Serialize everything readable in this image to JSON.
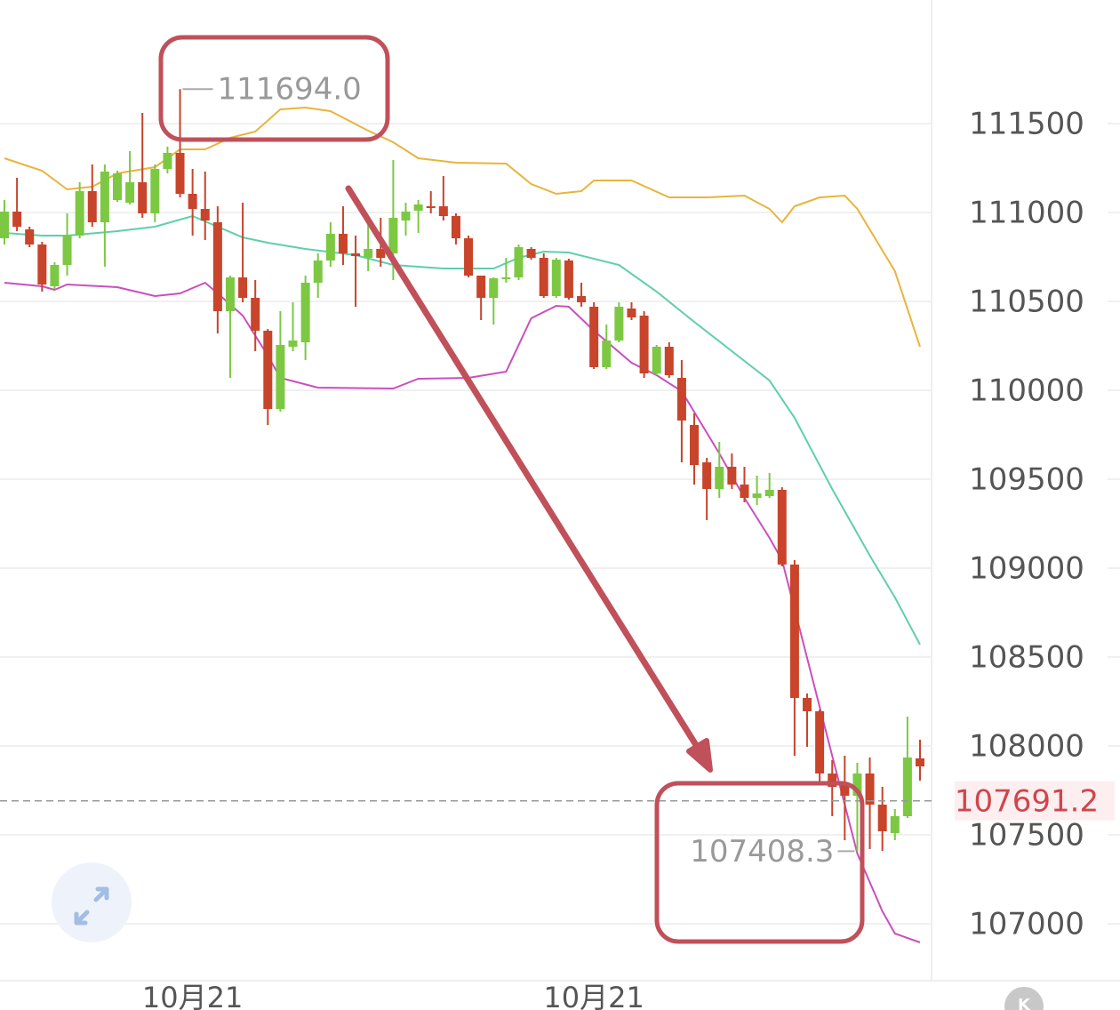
{
  "chart_data": {
    "type": "candlestick",
    "categories": [
      null,
      null,
      null,
      null,
      null,
      null,
      null,
      null,
      null,
      null,
      null,
      null,
      null,
      null,
      null,
      "10月21",
      null,
      null,
      null,
      null,
      null,
      null,
      null,
      null,
      null,
      null,
      null,
      null,
      null,
      null,
      null,
      null,
      null,
      null,
      null,
      null,
      null,
      null,
      null,
      null,
      null,
      null,
      null,
      null,
      null,
      null,
      null,
      "10月21",
      null,
      null,
      null,
      null,
      null,
      null,
      null,
      null,
      null,
      null,
      null,
      null,
      null,
      null,
      null,
      null,
      null,
      null,
      null,
      null,
      null,
      null,
      null,
      null,
      null,
      null
    ],
    "open": [
      110855,
      111005,
      110905,
      110820,
      110585,
      110705,
      110870,
      111120,
      110945,
      111070,
      111055,
      111170,
      110995,
      111245,
      111335,
      111105,
      111020,
      110945,
      110445,
      110635,
      110520,
      110335,
      109895,
      110245,
      110270,
      110605,
      110730,
      110880,
      110770,
      110745,
      110795,
      110770,
      110955,
      111010,
      111035,
      111035,
      110980,
      110855,
      110645,
      110520,
      110625,
      110635,
      110795,
      110745,
      110530,
      110730,
      110530,
      110470,
      110130,
      110280,
      110460,
      110420,
      110095,
      110245,
      110070,
      109805,
      109595,
      109445,
      109570,
      109470,
      109395,
      109405,
      109440,
      109020,
      108270,
      108195,
      107845,
      107785,
      107720,
      107845,
      107670,
      107510,
      107605,
      107930
    ],
    "high": [
      111070,
      111195,
      110920,
      110835,
      110720,
      110995,
      111170,
      111270,
      111270,
      111235,
      111345,
      111560,
      111270,
      111370,
      111694,
      111245,
      111230,
      111035,
      110645,
      111055,
      110620,
      110345,
      110445,
      110495,
      110645,
      110770,
      110945,
      111035,
      110870,
      110945,
      110970,
      111295,
      111055,
      111070,
      111120,
      111205,
      110995,
      110870,
      110645,
      110635,
      110745,
      110820,
      110805,
      110770,
      110745,
      110740,
      110605,
      110495,
      110370,
      110495,
      110495,
      110445,
      110255,
      110270,
      110170,
      109870,
      109620,
      109710,
      109645,
      109570,
      109520,
      109535,
      109455,
      109045,
      108295,
      108205,
      107920,
      107945,
      107905,
      107935,
      107770,
      107645,
      108165,
      108035
    ],
    "low": [
      110820,
      110895,
      110805,
      110555,
      110570,
      110645,
      110855,
      110920,
      110695,
      111060,
      111045,
      110970,
      110945,
      111220,
      111085,
      110870,
      110845,
      110320,
      110070,
      110495,
      110220,
      109805,
      109880,
      110220,
      110170,
      110520,
      110695,
      110705,
      110470,
      110670,
      110695,
      110620,
      110870,
      110885,
      110995,
      110955,
      110820,
      110635,
      110395,
      110370,
      110605,
      110620,
      110735,
      110520,
      110520,
      110510,
      110470,
      110120,
      110120,
      110270,
      110395,
      110070,
      110085,
      110070,
      109595,
      109470,
      109270,
      109395,
      109445,
      109370,
      109355,
      109395,
      109010,
      107945,
      107995,
      107795,
      107605,
      107470,
      107408.3,
      107420,
      107410,
      107470,
      107595,
      107805
    ],
    "close": [
      111005,
      110920,
      110820,
      110595,
      110705,
      110870,
      111120,
      110945,
      111230,
      111220,
      111170,
      110995,
      111245,
      111335,
      111105,
      111020,
      110955,
      110445,
      110635,
      110520,
      110335,
      109895,
      110255,
      110280,
      110605,
      110730,
      110880,
      110770,
      110755,
      110795,
      110745,
      110970,
      111005,
      111045,
      111030,
      110980,
      110855,
      110645,
      110520,
      110630,
      110635,
      110805,
      110745,
      110530,
      110735,
      110520,
      110495,
      110130,
      110280,
      110470,
      110410,
      110095,
      110245,
      110085,
      109830,
      109580,
      109445,
      109570,
      109470,
      109395,
      109420,
      109440,
      109020,
      108270,
      108195,
      107845,
      107770,
      107720,
      107845,
      107670,
      107520,
      107605,
      107935,
      107885
    ],
    "up_color": "#7cc843",
    "down_color": "#c8442b",
    "max_label": "111694.0",
    "last_price": 107691.2,
    "last_price_color": "#d0454c",
    "bands": [
      {
        "color": "#e8b43c",
        "x": [
          0,
          3,
          5,
          7,
          9,
          12,
          14,
          16,
          18,
          20,
          22,
          24,
          26,
          29,
          31,
          33,
          36,
          40,
          42,
          44,
          46,
          47,
          50,
          53,
          56,
          59,
          61,
          62,
          63,
          65,
          67,
          68,
          71,
          73
        ],
        "values": [
          111305,
          111235,
          111130,
          111145,
          111220,
          111255,
          111355,
          111355,
          111420,
          111455,
          111580,
          111590,
          111570,
          111460,
          111395,
          111305,
          111280,
          111275,
          111160,
          111105,
          111120,
          111180,
          111180,
          111085,
          111085,
          111095,
          111020,
          110945,
          111035,
          111085,
          111095,
          111020,
          110670,
          110245
        ]
      },
      {
        "color": "#5fcfa8",
        "x": [
          0,
          3,
          5,
          9,
          12,
          15,
          17,
          19,
          21,
          24,
          28,
          31,
          35,
          39,
          41,
          43,
          45,
          49,
          52,
          55,
          58,
          61,
          63,
          66,
          69,
          71,
          73
        ],
        "values": [
          110885,
          110870,
          110870,
          110895,
          110920,
          110980,
          110920,
          110860,
          110830,
          110795,
          110760,
          110705,
          110685,
          110685,
          110745,
          110780,
          110775,
          110705,
          110555,
          110385,
          110220,
          110055,
          109845,
          109445,
          109070,
          108835,
          108570
        ]
      },
      {
        "color": "#c94fc0",
        "x": [
          0,
          3,
          4,
          5,
          9,
          12,
          14,
          16,
          17,
          19,
          21,
          22,
          25,
          31,
          33,
          37,
          40,
          42,
          44,
          45,
          47,
          50,
          52,
          54,
          57,
          59,
          61,
          62,
          64,
          66,
          68,
          70,
          71,
          73
        ],
        "values": [
          110605,
          110585,
          110565,
          110595,
          110580,
          110530,
          110545,
          110605,
          110545,
          110420,
          110195,
          110070,
          110015,
          110010,
          110065,
          110070,
          110105,
          110405,
          110475,
          110470,
          110335,
          110155,
          110085,
          109995,
          109645,
          109395,
          109170,
          109045,
          108495,
          107945,
          107395,
          107070,
          106945,
          106895
        ]
      }
    ],
    "ylim": [
      106680,
      112195
    ],
    "yticks": [
      107000,
      107500,
      108000,
      108500,
      109000,
      109500,
      110000,
      110500,
      111000,
      111500
    ],
    "grid": true
  },
  "ui": {
    "badge": "K"
  }
}
